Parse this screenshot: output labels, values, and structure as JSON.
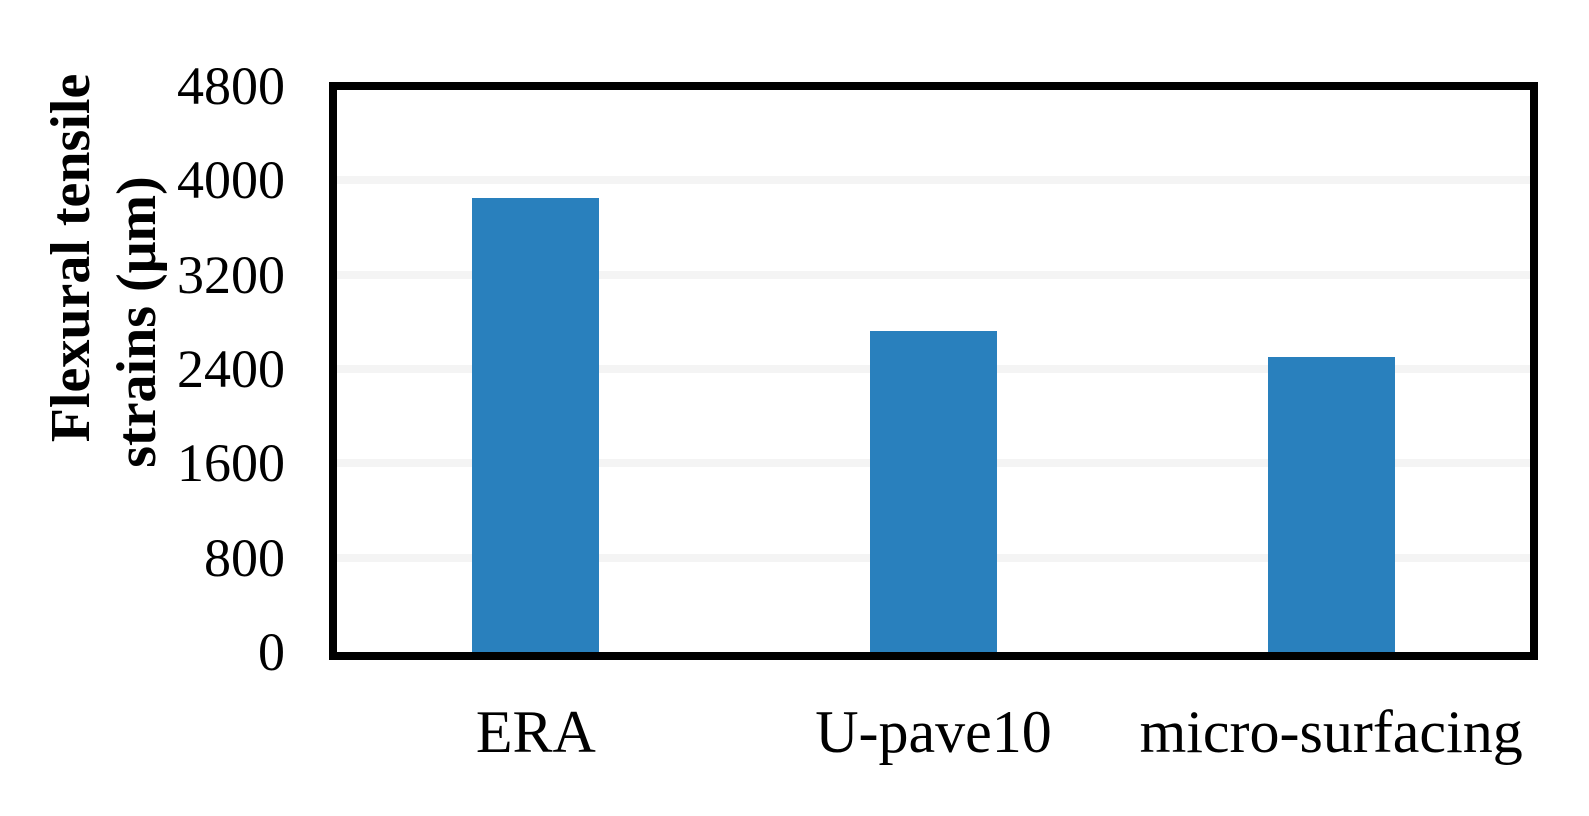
{
  "chart_data": {
    "type": "bar",
    "title": "",
    "categories": [
      "ERA",
      "U-pave10",
      "micro-surfacing"
    ],
    "values": [
      3850,
      2720,
      2500
    ],
    "series": [
      {
        "name": "Flexural tensile strains",
        "values": [
          3850,
          2720,
          2500
        ]
      }
    ],
    "xlabel": "",
    "ylabel": "Flexural tensile strains (μm)",
    "ylabel_line1": "Flexural tensile",
    "ylabel_line2": "strains (μm)",
    "ylim": [
      0,
      4800
    ],
    "ytick_interval": 800,
    "yticks": [
      4800,
      4000,
      3200,
      2400,
      1600,
      800,
      0
    ],
    "grid": "horizontal-major",
    "legend": "none",
    "colors": {
      "bar_fill": "#2980BD",
      "gridline": "#F4F4F4",
      "plot_border": "#000000",
      "text": "#000000",
      "background": "#FFFFFF"
    }
  }
}
